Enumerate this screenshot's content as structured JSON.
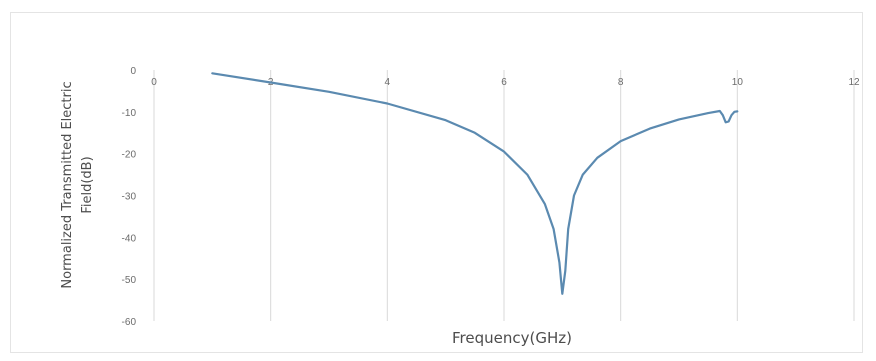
{
  "chart_data": {
    "type": "line",
    "title": "",
    "xlabel": "Frequency(GHz)",
    "ylabel": "Normalized Transmitted Electric Field(dB)",
    "ylabel_lines": [
      "Normalized Transmitted Electric",
      "Field(dB)"
    ],
    "xlim": [
      0,
      12
    ],
    "ylim": [
      -60,
      0
    ],
    "x_ticks": [
      0,
      2,
      4,
      6,
      8,
      10,
      12
    ],
    "y_ticks": [
      0,
      -10,
      -20,
      -30,
      -40,
      -50,
      -60
    ],
    "x_tick_labels": [
      "0",
      "2",
      "4",
      "6",
      "8",
      "10",
      "12"
    ],
    "y_tick_labels": [
      "0",
      "-10",
      "-20",
      "-30",
      "-40",
      "-50",
      "-60"
    ],
    "x_axis_position": "top",
    "grid": {
      "vertical": true,
      "horizontal": false
    },
    "legend": "none",
    "series": [
      {
        "color": "#5b8ab0",
        "x": [
          1.0,
          2.0,
          3.0,
          4.0,
          5.0,
          5.5,
          6.0,
          6.4,
          6.7,
          6.85,
          6.95,
          7.0,
          7.05,
          7.1,
          7.2,
          7.35,
          7.6,
          8.0,
          8.5,
          9.0,
          9.5,
          9.7,
          9.75,
          9.8,
          9.85,
          9.9,
          9.95,
          10.0
        ],
        "y": [
          -0.8,
          -3.0,
          -5.2,
          -8.0,
          -12.0,
          -15.0,
          -19.5,
          -25.0,
          -32.0,
          -38.0,
          -46.0,
          -53.5,
          -48.0,
          -38.0,
          -30.0,
          -25.0,
          -21.0,
          -17.0,
          -14.0,
          -11.8,
          -10.3,
          -9.8,
          -10.8,
          -12.5,
          -12.3,
          -10.8,
          -10.0,
          -9.9
        ]
      }
    ]
  }
}
